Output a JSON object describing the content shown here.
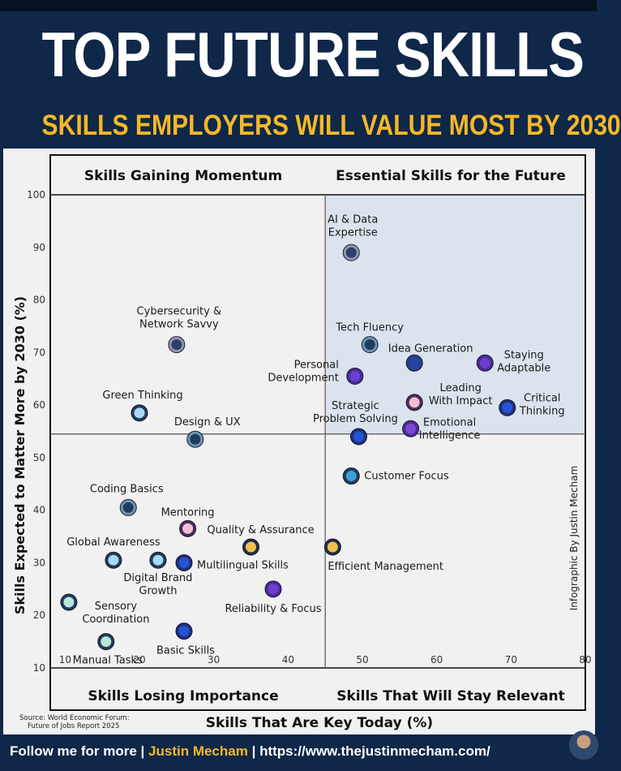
{
  "title": "TOP FUTURE SKILLS",
  "subtitle": "SKILLS EMPLOYERS WILL VALUE MOST BY 2030",
  "credit": "Infographic By Justin Mecham",
  "source_line1": "Source: World Economic Forum:",
  "source_line2": "Future of Jobs Report 2025",
  "footer": {
    "prefix": "Follow me for more",
    "separator": "|",
    "name": "Justin Mecham",
    "url": "https://www.thejustinmecham.com/"
  },
  "colors": {
    "background": "#0f2748",
    "accent": "#f6b829",
    "plot_background": "#f2f1f2",
    "highlight_quadrant": "#dbe4ee"
  },
  "chart_data": {
    "type": "scatter",
    "xlabel": "Skills That Are Key Today (%)",
    "ylabel": "Skills Expected to Matter More by 2030 (%)",
    "xlim": [
      8,
      80
    ],
    "ylim": [
      10,
      100
    ],
    "xticks": [
      10,
      20,
      30,
      40,
      50,
      60,
      70,
      80
    ],
    "yticks": [
      10,
      20,
      30,
      40,
      50,
      60,
      70,
      80,
      90,
      100
    ],
    "divider_x": 45,
    "divider_y": 54.5,
    "grid": false,
    "quadrant_labels": {
      "top_left": "Skills Gaining Momentum",
      "top_right": "Essential Skills for the Future",
      "bottom_left": "Skills Losing Importance",
      "bottom_right": "Skills That Will Stay Relevant"
    },
    "points": [
      {
        "label": "AI & Data Expertise",
        "x": 48.5,
        "y": 89,
        "color": "#2e3f6b",
        "ring": "#8f98ad"
      },
      {
        "label": "Tech Fluency",
        "x": 51,
        "y": 71.5,
        "color": "#1f3d5c",
        "ring": "#6e95b3"
      },
      {
        "label": "Idea Generation",
        "x": 57,
        "y": 68,
        "color": "#2244a8",
        "ring": "#2a3f86"
      },
      {
        "label": "Staying Adaptable",
        "x": 66.5,
        "y": 68,
        "color": "#6a3fd1",
        "ring": "#4a2a96"
      },
      {
        "label": "Personal Development",
        "x": 49,
        "y": 65.5,
        "color": "#6a3fd1",
        "ring": "#4a2a96"
      },
      {
        "label": "Leading With Impact",
        "x": 57,
        "y": 60.5,
        "color": "#f0bfd2",
        "ring": "#4b2c5a"
      },
      {
        "label": "Critical Thinking",
        "x": 69.5,
        "y": 59.5,
        "color": "#2454d4",
        "ring": "#20307a"
      },
      {
        "label": "Strategic Problem Solving",
        "x": 49.5,
        "y": 54,
        "color": "#2454d4",
        "ring": "#20307a"
      },
      {
        "label": "Emotional Intelligence",
        "x": 56.5,
        "y": 55.5,
        "color": "#7a47d6",
        "ring": "#4a2a96"
      },
      {
        "label": "Customer Focus",
        "x": 48.5,
        "y": 46.5,
        "color": "#3aa3d9",
        "ring": "#1f3d5c"
      },
      {
        "label": "Efficient Management",
        "x": 46,
        "y": 33,
        "color": "#f2c14e",
        "ring": "#1f2f4a"
      },
      {
        "label": "Cybersecurity & Network Savvy",
        "x": 25,
        "y": 71.5,
        "color": "#2e3f6b",
        "ring": "#8f98ad"
      },
      {
        "label": "Green Thinking",
        "x": 20,
        "y": 58.5,
        "color": "#a9d8f2",
        "ring": "#1f3d5c"
      },
      {
        "label": "Design & UX",
        "x": 27.5,
        "y": 53.5,
        "color": "#1f3d5c",
        "ring": "#6e95b3"
      },
      {
        "label": "Coding Basics",
        "x": 18.5,
        "y": 40.5,
        "color": "#1f3d5c",
        "ring": "#6e95b3"
      },
      {
        "label": "Mentoring",
        "x": 26.5,
        "y": 36.5,
        "color": "#f0bfd2",
        "ring": "#4b2c5a"
      },
      {
        "label": "Quality & Assurance",
        "x": 35,
        "y": 33,
        "color": "#f2c14e",
        "ring": "#1f2f4a"
      },
      {
        "label": "Global Awareness",
        "x": 16.5,
        "y": 30.5,
        "color": "#a9d8f2",
        "ring": "#1f3d5c"
      },
      {
        "label": "Digital Brand Growth",
        "x": 22.5,
        "y": 30.5,
        "color": "#a9d8f2",
        "ring": "#1f3d5c"
      },
      {
        "label": "Multilingual Skills",
        "x": 26,
        "y": 30,
        "color": "#2454d4",
        "ring": "#20307a"
      },
      {
        "label": "Reliability & Focus",
        "x": 38,
        "y": 25,
        "color": "#6a3fd1",
        "ring": "#4a2a96"
      },
      {
        "label": "Sensory Coordination",
        "x": 10.5,
        "y": 22.5,
        "color": "#b7e6da",
        "ring": "#1f3d5c"
      },
      {
        "label": "Basic Skills",
        "x": 26,
        "y": 17,
        "color": "#2454d4",
        "ring": "#20307a"
      },
      {
        "label": "Manual Tasks",
        "x": 15.5,
        "y": 15,
        "color": "#b7e6da",
        "ring": "#1f3d5c"
      }
    ]
  }
}
